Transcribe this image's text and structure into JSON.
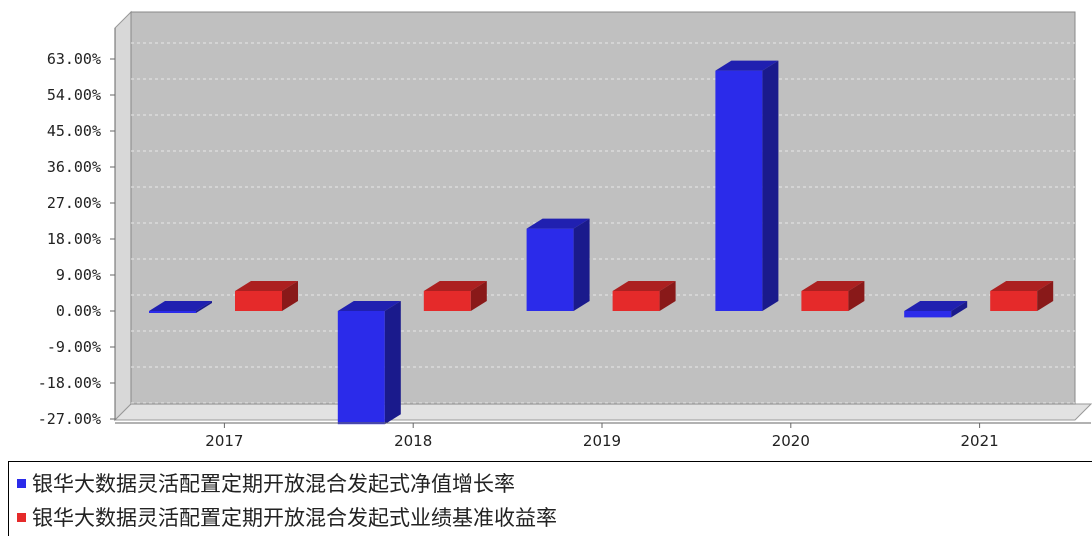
{
  "chart_data": {
    "type": "bar",
    "categories": [
      "2017",
      "2018",
      "2019",
      "2020",
      "2021"
    ],
    "series": [
      {
        "name": "银华大数据灵活配置定期开放混合发起式净值增长率",
        "color": "#2b2bea",
        "values": [
          -0.5,
          -28.3,
          20.6,
          60.1,
          -1.6
        ]
      },
      {
        "name": "银华大数据灵活配置定期开放混合发起式业绩基准收益率",
        "color": "#e52a2a",
        "values": [
          5.0,
          5.0,
          5.0,
          5.0,
          5.0
        ]
      }
    ],
    "yticks": [
      "63.00%",
      "54.00%",
      "45.00%",
      "36.00%",
      "27.00%",
      "18.00%",
      "9.00%",
      "0.00%",
      "-9.00%",
      "-18.00%",
      "-27.00%"
    ],
    "ytick_values": [
      63,
      54,
      45,
      36,
      27,
      18,
      9,
      0,
      -9,
      -18,
      -27
    ],
    "ylim": [
      -29.5,
      70
    ],
    "grid": true,
    "legend_position": "bottom-left"
  }
}
